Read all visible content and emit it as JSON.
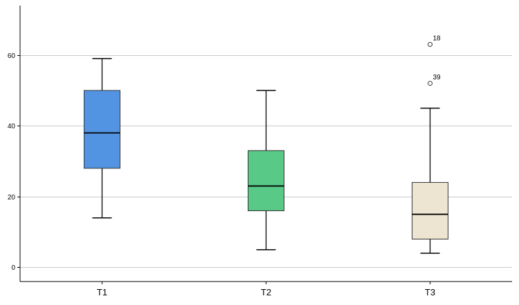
{
  "chart_data": {
    "type": "boxplot",
    "title": "",
    "xlabel": "",
    "ylabel": "",
    "ylim": [
      -4,
      74
    ],
    "yticks": [
      0,
      20,
      40,
      60
    ],
    "grid": true,
    "categories": [
      "T1",
      "T2",
      "T3"
    ],
    "boxes": [
      {
        "category": "T1",
        "whisker_low": 14,
        "q1": 28,
        "median": 38,
        "q3": 50,
        "whisker_high": 59,
        "color": "#5294e2",
        "outliers": []
      },
      {
        "category": "T2",
        "whisker_low": 5,
        "q1": 16,
        "median": 23,
        "q3": 33,
        "whisker_high": 50,
        "color": "#58c987",
        "outliers": []
      },
      {
        "category": "T3",
        "whisker_low": 4,
        "q1": 8,
        "median": 15,
        "q3": 24,
        "whisker_high": 45,
        "color": "#ede5d1",
        "outliers": [
          {
            "value": 63,
            "label": "18"
          },
          {
            "value": 52,
            "label": "39"
          }
        ]
      }
    ]
  }
}
